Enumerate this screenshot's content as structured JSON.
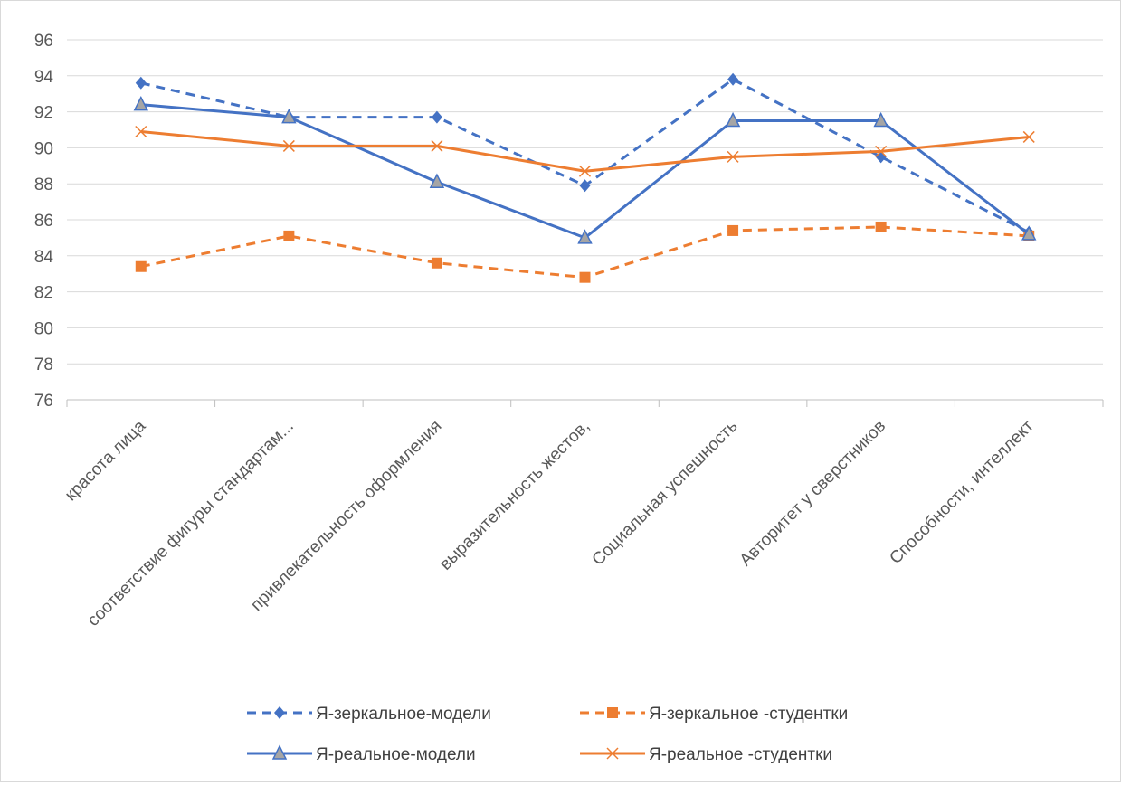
{
  "chart_data": {
    "type": "line",
    "title": "",
    "xlabel": "",
    "ylabel": "",
    "ylim": [
      76,
      96
    ],
    "y_ticks": [
      76,
      78,
      80,
      82,
      84,
      86,
      88,
      90,
      92,
      94,
      96
    ],
    "grid": "horizontal",
    "legend_position": "bottom",
    "categories": [
      "красота лица",
      "соответствие фигуры стандартам...",
      "привлекательность оформления",
      "выразительность жестов,",
      "Социальная успешность",
      "Авторитет у сверстников",
      "Способности, интеллект"
    ],
    "series": [
      {
        "name": "Я-зеркальное-модели",
        "values": [
          93.6,
          91.7,
          91.7,
          87.9,
          93.8,
          89.5,
          85.3
        ],
        "color": "#4472c4",
        "dash": "dashed",
        "marker": "diamond"
      },
      {
        "name": "Я-зеркальное -студентки",
        "values": [
          83.4,
          85.1,
          83.6,
          82.8,
          85.4,
          85.6,
          85.1
        ],
        "color": "#ed7d31",
        "dash": "dashed",
        "marker": "square"
      },
      {
        "name": "Я-реальное-модели",
        "values": [
          92.4,
          91.7,
          88.1,
          85.0,
          91.5,
          91.5,
          85.2
        ],
        "color": "#4472c4",
        "dash": "solid",
        "marker": "triangle"
      },
      {
        "name": "Я-реальное -студентки",
        "values": [
          90.9,
          90.1,
          90.1,
          88.7,
          89.5,
          89.8,
          90.6
        ],
        "color": "#ed7d31",
        "dash": "solid",
        "marker": "x"
      }
    ]
  }
}
